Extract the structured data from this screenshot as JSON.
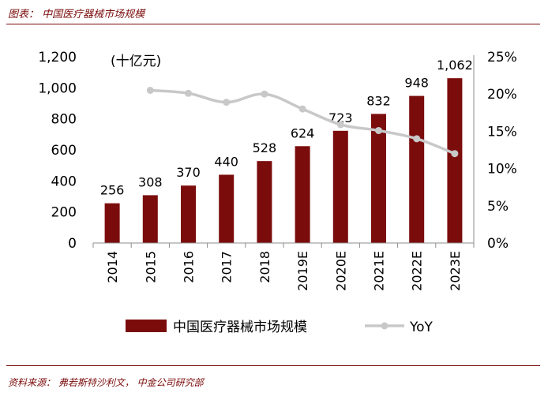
{
  "header": {
    "title": "图表： 中国医疗器械市场规模"
  },
  "footer": {
    "source": "资料来源： 弗若斯特沙利文， 中金公司研究部"
  },
  "colors": {
    "bar": "#7b0c0c",
    "line": "#c8c8c8",
    "accent": "#7a0a0a",
    "axis": "#8c8c8c"
  },
  "chart_data": {
    "type": "bar",
    "title": "中国医疗器械市场规模",
    "unit_label": "(十亿元)",
    "categories": [
      "2014",
      "2015",
      "2016",
      "2017",
      "2018",
      "2019E",
      "2020E",
      "2021E",
      "2022E",
      "2023E"
    ],
    "series": [
      {
        "name": "中国医疗器械市场规模",
        "type": "bar",
        "axis": "left",
        "values": [
          256,
          308,
          370,
          440,
          528,
          624,
          723,
          832,
          948,
          1062
        ],
        "labels": [
          "256",
          "308",
          "370",
          "440",
          "528",
          "624",
          "723",
          "832",
          "948",
          "1,062"
        ]
      },
      {
        "name": "YoY",
        "type": "line",
        "axis": "right",
        "values": [
          null,
          20.5,
          20.1,
          18.9,
          20.0,
          18.0,
          15.9,
          15.1,
          14.0,
          12.0
        ]
      }
    ],
    "y_left": {
      "min": 0,
      "max": 1200,
      "step": 200,
      "tick_labels": [
        "0",
        "200",
        "400",
        "600",
        "800",
        "1,000",
        "1,200"
      ]
    },
    "y_right": {
      "min": 0,
      "max": 25,
      "step": 5,
      "tick_labels": [
        "0%",
        "5%",
        "10%",
        "15%",
        "20%",
        "25%"
      ]
    },
    "legend": {
      "position": "bottom",
      "entries": [
        "中国医疗器械市场规模",
        "YoY"
      ]
    }
  }
}
